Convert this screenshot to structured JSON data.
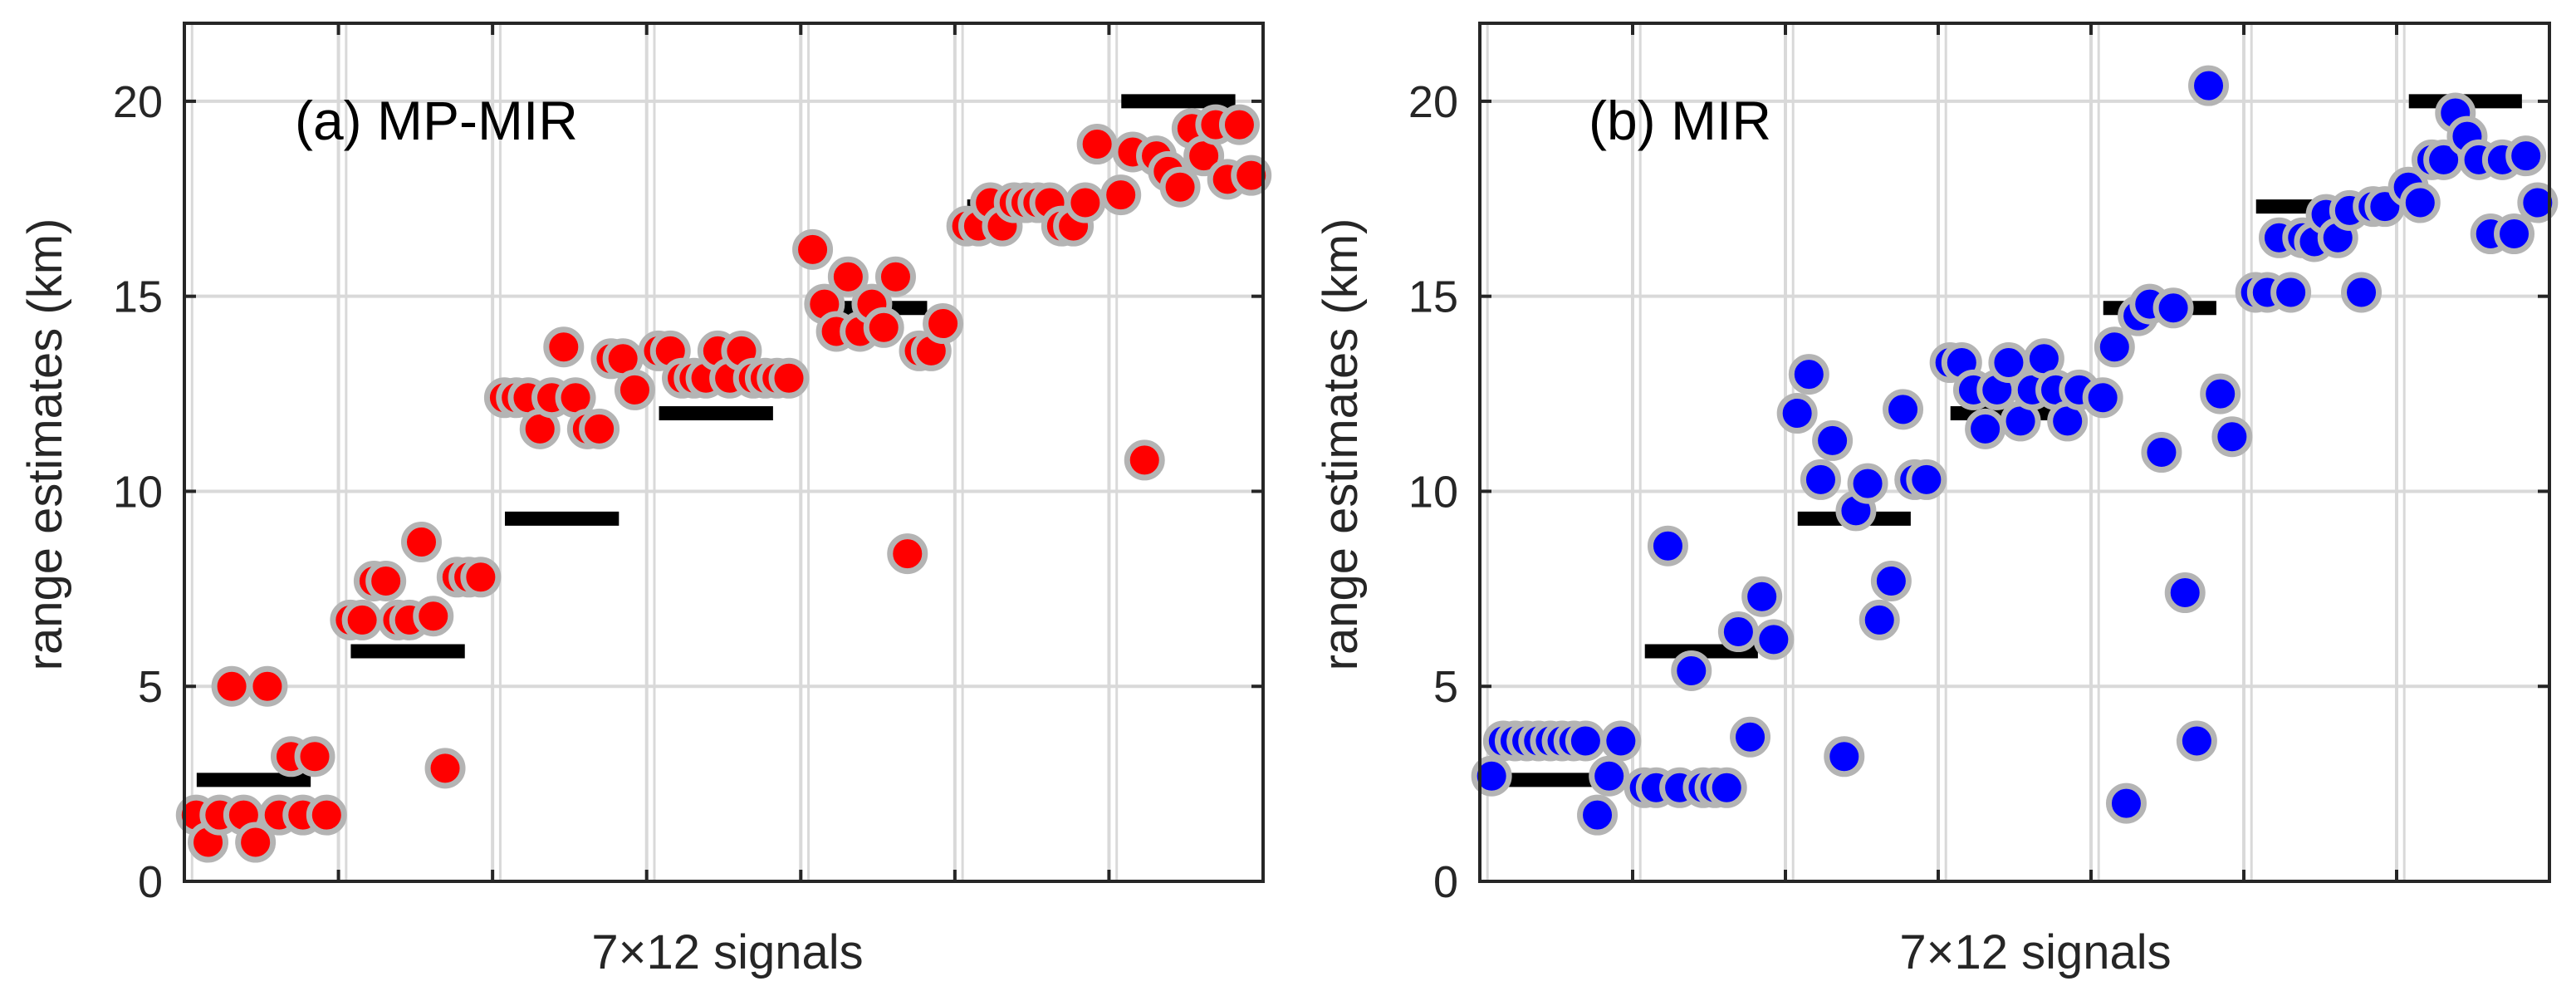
{
  "chart_data": [
    {
      "type": "scatter",
      "title": "(a) MP-MIR",
      "xlabel": "7×12 signals",
      "ylabel": "range estimates (km)",
      "ylim": [
        0,
        22
      ],
      "yticks": [
        0,
        5,
        10,
        15,
        20
      ],
      "grid": true,
      "n_groups": 7,
      "signals_per_group": 12,
      "marker_color": "#ff0000",
      "marker_edge_color": "#b4b4b4",
      "true_ranges": [
        2.6,
        5.9,
        9.3,
        12.0,
        14.7,
        17.3,
        20.0
      ],
      "estimates": [
        [
          1.7,
          1.0,
          1.7,
          5.0,
          1.7,
          1.0,
          5.0,
          1.7,
          3.2,
          1.7,
          3.2,
          1.7
        ],
        [
          6.7,
          6.7,
          7.7,
          7.7,
          6.7,
          6.7,
          8.7,
          6.8,
          2.9,
          7.8,
          7.8,
          7.8
        ],
        [
          12.4,
          12.4,
          12.4,
          11.6,
          12.4,
          13.7,
          12.4,
          11.6,
          11.6,
          13.4,
          13.4,
          12.6
        ],
        [
          13.6,
          13.6,
          12.9,
          12.9,
          12.9,
          13.6,
          12.9,
          13.6,
          12.9,
          12.9,
          12.9,
          12.9
        ],
        [
          16.2,
          14.8,
          14.1,
          15.5,
          14.1,
          14.8,
          14.2,
          15.5,
          8.4,
          13.6,
          13.6,
          14.3
        ],
        [
          16.8,
          16.8,
          17.4,
          16.8,
          17.4,
          17.4,
          17.4,
          17.4,
          16.8,
          16.8,
          17.4,
          18.9
        ],
        [
          17.6,
          18.7,
          10.8,
          18.6,
          18.2,
          17.8,
          19.3,
          18.6,
          19.4,
          18.0,
          19.4,
          18.1
        ]
      ]
    },
    {
      "type": "scatter",
      "title": "(b) MIR",
      "xlabel": "7×12 signals",
      "ylabel": "range estimates (km)",
      "ylim": [
        0,
        22
      ],
      "yticks": [
        0,
        5,
        10,
        15,
        20
      ],
      "grid": true,
      "n_groups": 7,
      "signals_per_group": 12,
      "marker_color": "#0000ff",
      "marker_edge_color": "#b4b4b4",
      "true_ranges": [
        2.6,
        5.9,
        9.3,
        12.0,
        14.7,
        17.3,
        20.0
      ],
      "estimates": [
        [
          2.7,
          3.6,
          3.6,
          3.6,
          3.6,
          3.6,
          3.6,
          3.6,
          3.6,
          1.7,
          2.7,
          3.6
        ],
        [
          2.4,
          2.4,
          8.6,
          2.4,
          5.4,
          2.4,
          2.4,
          2.4,
          6.4,
          3.7,
          7.3,
          6.2
        ],
        [
          12.0,
          13.0,
          10.3,
          11.3,
          3.2,
          9.5,
          10.2,
          6.7,
          7.7,
          12.1,
          10.3,
          10.3
        ],
        [
          13.3,
          13.3,
          12.6,
          11.6,
          12.6,
          13.3,
          11.8,
          12.6,
          13.4,
          12.6,
          11.8,
          12.6
        ],
        [
          12.4,
          13.7,
          2.0,
          14.5,
          14.8,
          11.0,
          14.7,
          7.4,
          3.6,
          20.4,
          12.5,
          11.4
        ],
        [
          15.1,
          15.1,
          16.5,
          15.1,
          16.5,
          16.4,
          17.1,
          16.5,
          17.2,
          15.1,
          17.3,
          17.3
        ],
        [
          17.8,
          17.4,
          18.5,
          18.5,
          19.7,
          19.1,
          18.5,
          16.6,
          18.5,
          16.6,
          18.6,
          17.4
        ]
      ]
    }
  ]
}
